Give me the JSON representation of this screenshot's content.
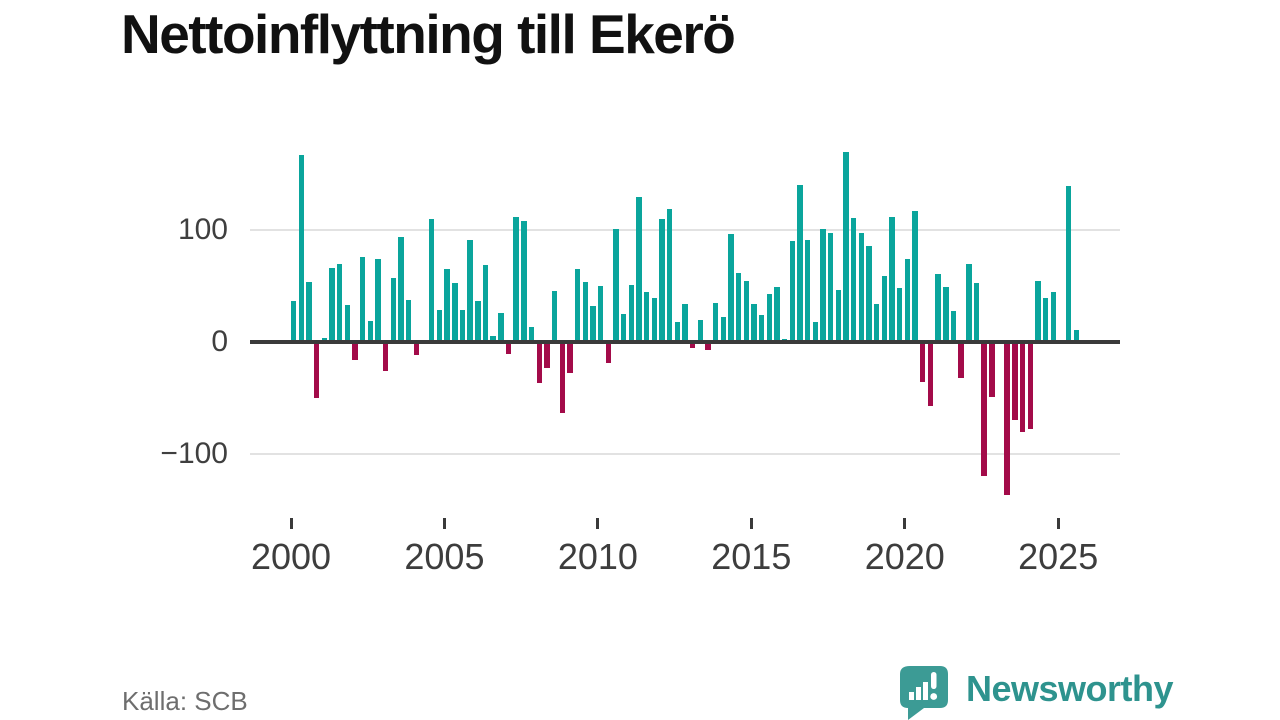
{
  "title": "Nettoinflyttning till Ekerö",
  "source": {
    "label": "Källa: SCB"
  },
  "brand": {
    "name": "Newsworthy",
    "icon": "newsworthy-logo-icon"
  },
  "colors": {
    "positive_bar": "#0aa59c",
    "negative_bar": "#a30b49",
    "zero_axis": "#3a3a3a",
    "gridline": "#e2e2e2",
    "brand_teal": "#2e938e",
    "title_text": "#111111",
    "axis_text": "#3d3d3d",
    "source_text": "#6e6e6e"
  },
  "chart_data": {
    "type": "bar",
    "title": "Nettoinflyttning till Ekerö",
    "xlabel": "",
    "ylabel": "",
    "x_unit": "quarter",
    "start_year": 2000,
    "start_quarter": 1,
    "end_label": "2025 Q3",
    "grid": true,
    "legend": "none",
    "ylim": [
      -150,
      180
    ],
    "y_ticks": [
      {
        "value": 100,
        "label": "100"
      },
      {
        "value": 0,
        "label": "0"
      },
      {
        "value": -100,
        "label": "−100"
      }
    ],
    "x_tick_labels": [
      "2000",
      "2005",
      "2010",
      "2015",
      "2020",
      "2025"
    ],
    "values": [
      37,
      167,
      54,
      -50,
      4,
      66,
      70,
      33,
      -16,
      76,
      19,
      74,
      -26,
      57,
      94,
      38,
      -12,
      0,
      110,
      29,
      65,
      53,
      29,
      91,
      37,
      69,
      5,
      26,
      -11,
      112,
      108,
      13,
      -37,
      -23,
      46,
      -64,
      -28,
      65,
      54,
      32,
      50,
      -19,
      101,
      25,
      51,
      130,
      45,
      39,
      110,
      119,
      18,
      34,
      -5,
      20,
      -7,
      35,
      22,
      97,
      62,
      55,
      34,
      24,
      43,
      49,
      3,
      90,
      141,
      91,
      18,
      101,
      98,
      47,
      170,
      111,
      98,
      86,
      34,
      59,
      112,
      48,
      74,
      117,
      -36,
      -57,
      61,
      49,
      28,
      -32,
      70,
      53,
      -120,
      -49,
      0,
      -137,
      -70,
      -81,
      -78,
      55,
      39,
      45,
      0,
      140,
      11
    ]
  }
}
